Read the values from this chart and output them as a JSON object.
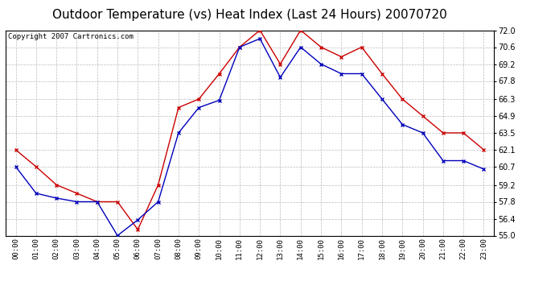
{
  "title": "Outdoor Temperature (vs) Heat Index (Last 24 Hours) 20070720",
  "copyright": "Copyright 2007 Cartronics.com",
  "x_labels": [
    "00:00",
    "01:00",
    "02:00",
    "03:00",
    "04:00",
    "05:00",
    "06:00",
    "07:00",
    "08:00",
    "09:00",
    "10:00",
    "11:00",
    "12:00",
    "13:00",
    "14:00",
    "15:00",
    "16:00",
    "17:00",
    "18:00",
    "19:00",
    "20:00",
    "21:00",
    "22:00",
    "23:00"
  ],
  "temp_data": [
    60.7,
    58.5,
    58.1,
    57.8,
    57.8,
    55.0,
    56.3,
    57.8,
    63.5,
    65.6,
    66.2,
    70.6,
    71.3,
    68.1,
    70.6,
    69.2,
    68.4,
    68.4,
    66.3,
    64.2,
    63.5,
    61.2,
    61.2,
    60.5
  ],
  "heat_data": [
    62.1,
    60.7,
    59.2,
    58.5,
    57.8,
    57.8,
    55.5,
    59.2,
    65.6,
    66.3,
    68.4,
    70.6,
    72.0,
    69.2,
    72.0,
    70.6,
    69.8,
    70.6,
    68.4,
    66.3,
    64.9,
    63.5,
    63.5,
    62.1
  ],
  "y_min": 55.0,
  "y_max": 72.0,
  "y_ticks": [
    55.0,
    56.4,
    57.8,
    59.2,
    60.7,
    62.1,
    63.5,
    64.9,
    66.3,
    67.8,
    69.2,
    70.6,
    72.0
  ],
  "temp_color": "#0000bb",
  "heat_color": "#cc0000",
  "background_color": "#ffffff",
  "plot_bg_color": "#ffffff",
  "grid_color": "#bbbbbb",
  "title_fontsize": 11,
  "copyright_fontsize": 6.5
}
